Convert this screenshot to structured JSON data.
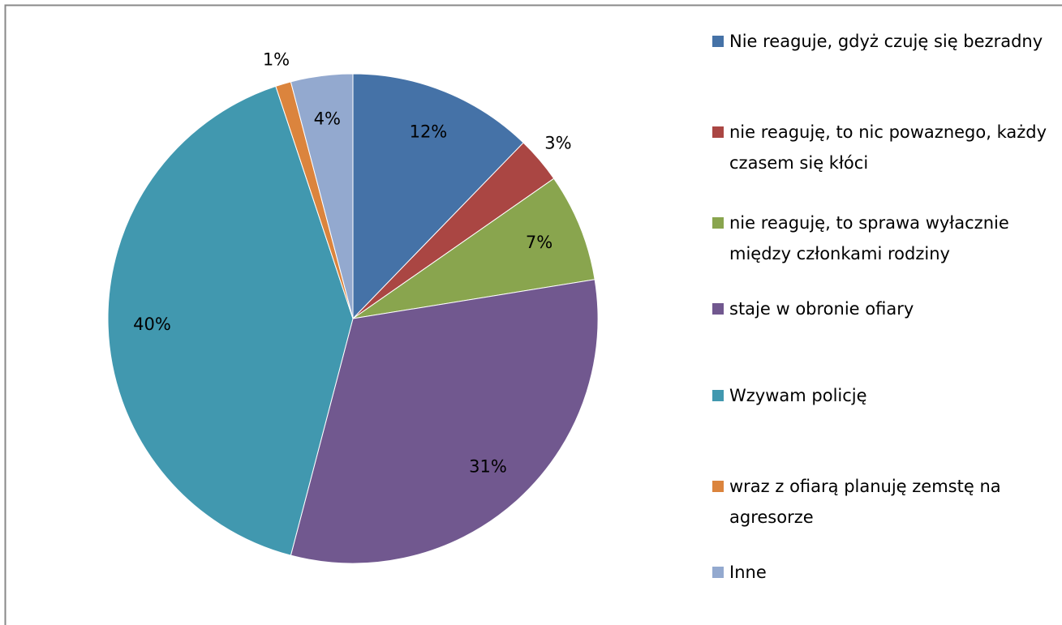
{
  "chart_data": {
    "type": "pie",
    "categories": [
      "Nie reaguje, gdyż czuję się bezradny",
      "nie reaguję, to nic powaznego, każdy czasem się kłóci",
      "nie reaguję, to sprawa wyłacznie między członkami rodziny",
      "staje w obronie ofiary",
      "Wzywam policję",
      "wraz z ofiarą planuję zemstę na agresorze",
      "Inne"
    ],
    "values": [
      12,
      3,
      7,
      31,
      40,
      1,
      4
    ],
    "value_labels": [
      "12%",
      "3%",
      "7%",
      "31%",
      "40%",
      "1%",
      "4%"
    ],
    "colors": [
      "#4572a7",
      "#aa4643",
      "#89a54e",
      "#71588f",
      "#4198af",
      "#db843d",
      "#93a9cf"
    ],
    "legend": "right"
  }
}
